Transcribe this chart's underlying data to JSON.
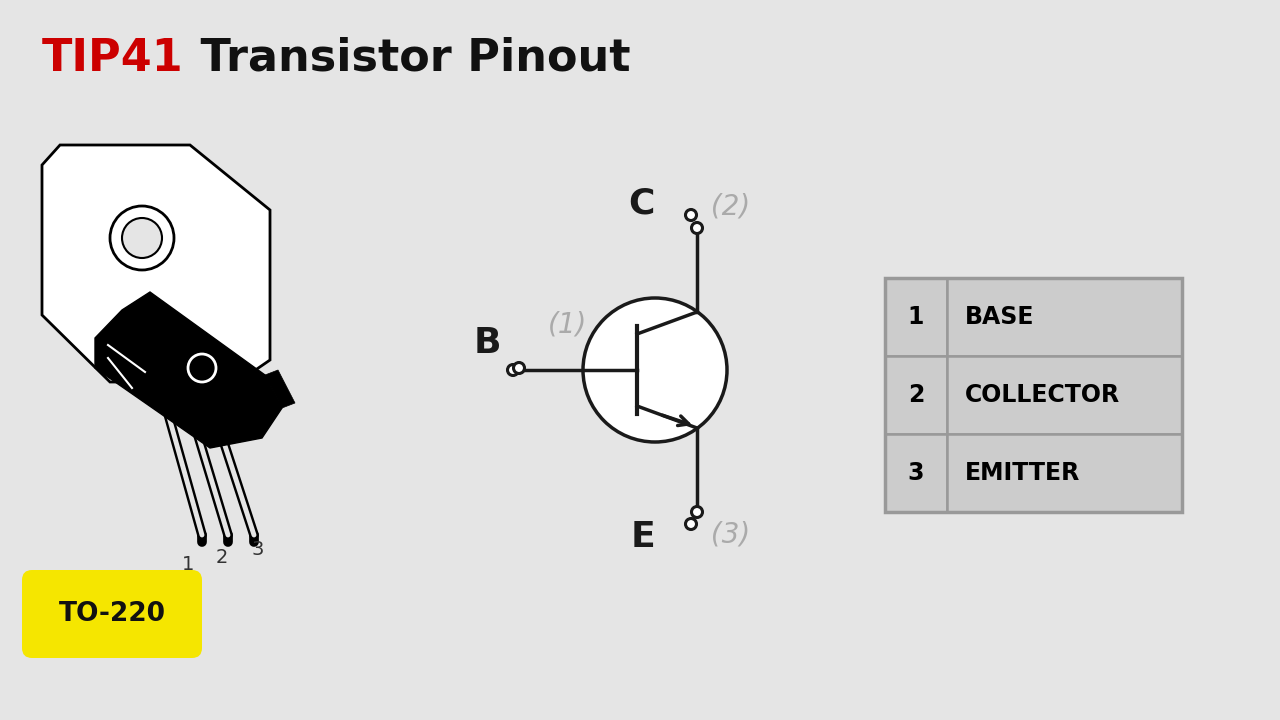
{
  "bg_color": "#e5e5e5",
  "title_tip41": "TIP41",
  "title_tip41_color": "#cc0000",
  "title_rest": " Transistor Pinout",
  "title_rest_color": "#111111",
  "title_fontsize": 32,
  "title_fontweight": "bold",
  "table_data": [
    [
      "1",
      "BASE"
    ],
    [
      "2",
      "COLLECTOR"
    ],
    [
      "3",
      "EMITTER"
    ]
  ],
  "table_bg": "#cccccc",
  "table_border": "#999999",
  "to220_label": "TO-220",
  "to220_bg": "#f5e600",
  "to220_text_color": "#111111",
  "pin_label_color": "#aaaaaa",
  "schematic_line_color": "#1a1a1a",
  "node_labels_color": "#1a1a1a",
  "node_dot_color": "#1a1a1a",
  "pin_number_color": "#333333"
}
